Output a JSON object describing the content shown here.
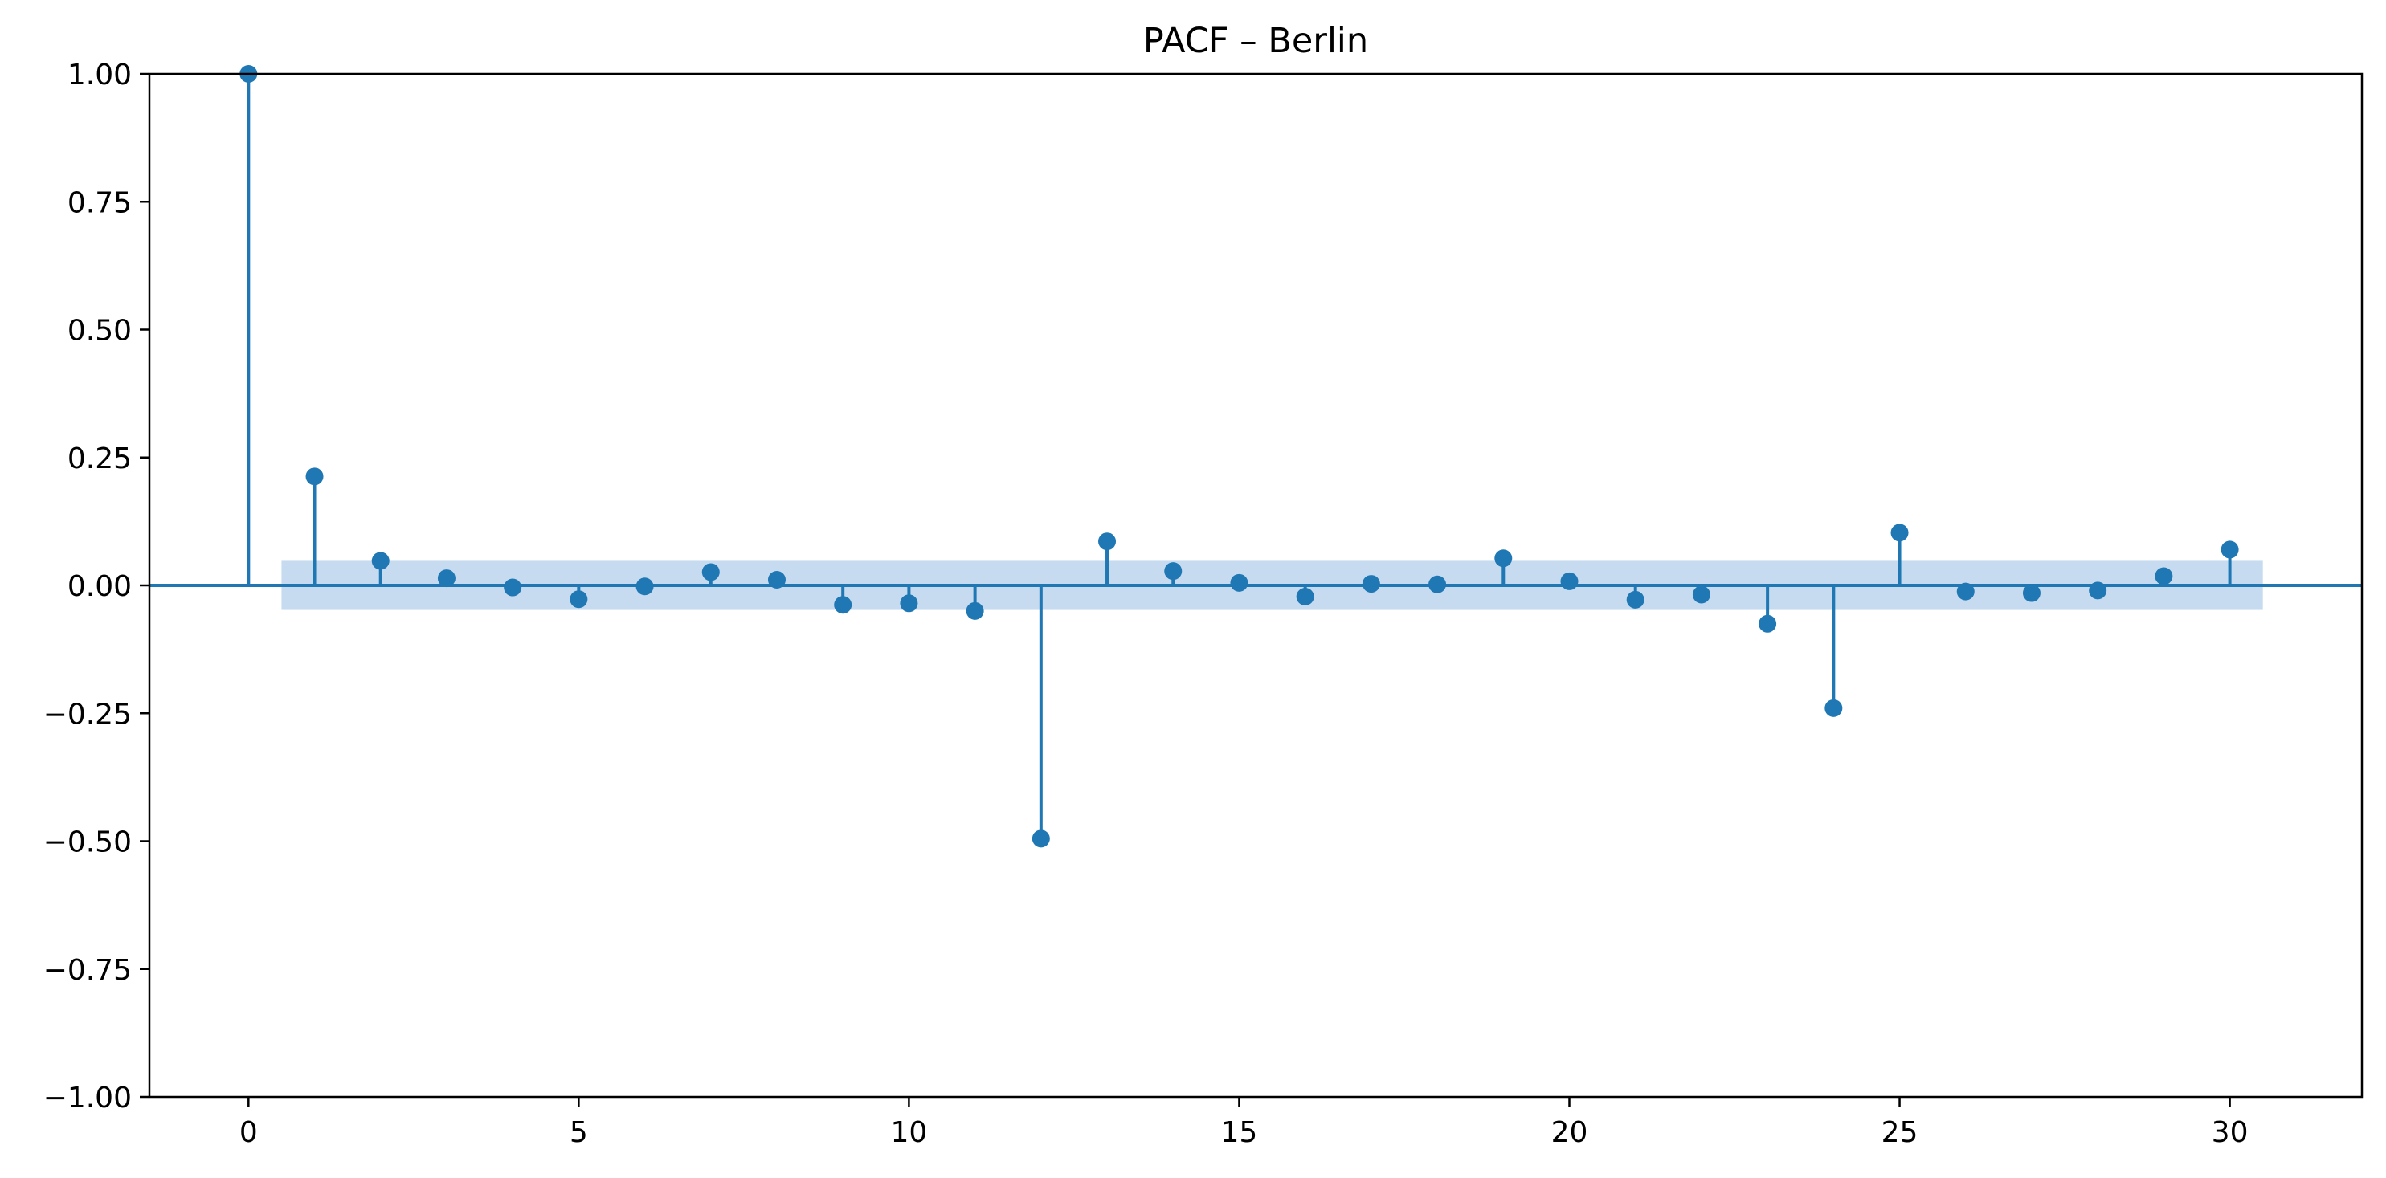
{
  "chart_data": {
    "type": "stem",
    "title": "PACF – Berlin",
    "xlabel": "",
    "ylabel": "",
    "xlim": [
      -1.5,
      32
    ],
    "ylim": [
      -1.0,
      1.0
    ],
    "grid": false,
    "x_ticks": [
      0,
      5,
      10,
      15,
      20,
      25,
      30
    ],
    "x_tick_labels": [
      "0",
      "5",
      "10",
      "15",
      "20",
      "25",
      "30"
    ],
    "y_ticks": [
      1.0,
      0.75,
      0.5,
      0.25,
      0.0,
      -0.25,
      -0.5,
      -0.75,
      -1.0
    ],
    "y_tick_labels": [
      "1.00",
      "0.75",
      "0.50",
      "0.25",
      "0.00",
      "−0.25",
      "−0.50",
      "−0.75",
      "−1.00"
    ],
    "confidence_band": {
      "x_range": [
        0.5,
        30.5
      ],
      "lower": -0.048,
      "upper": 0.048,
      "color": "#c6dbef"
    },
    "series_color": "#1f77b4",
    "x": [
      0,
      1,
      2,
      3,
      4,
      5,
      6,
      7,
      8,
      9,
      10,
      11,
      12,
      13,
      14,
      15,
      16,
      17,
      18,
      19,
      20,
      21,
      22,
      23,
      24,
      25,
      26,
      27,
      28,
      29,
      30
    ],
    "values": [
      1.0,
      0.213,
      0.048,
      0.014,
      -0.004,
      -0.027,
      -0.002,
      0.026,
      0.011,
      -0.038,
      -0.035,
      -0.05,
      -0.495,
      0.086,
      0.028,
      0.005,
      -0.022,
      0.003,
      0.002,
      0.053,
      0.008,
      -0.028,
      -0.018,
      -0.075,
      -0.24,
      0.103,
      -0.012,
      -0.015,
      -0.01,
      0.018,
      0.07
    ]
  }
}
